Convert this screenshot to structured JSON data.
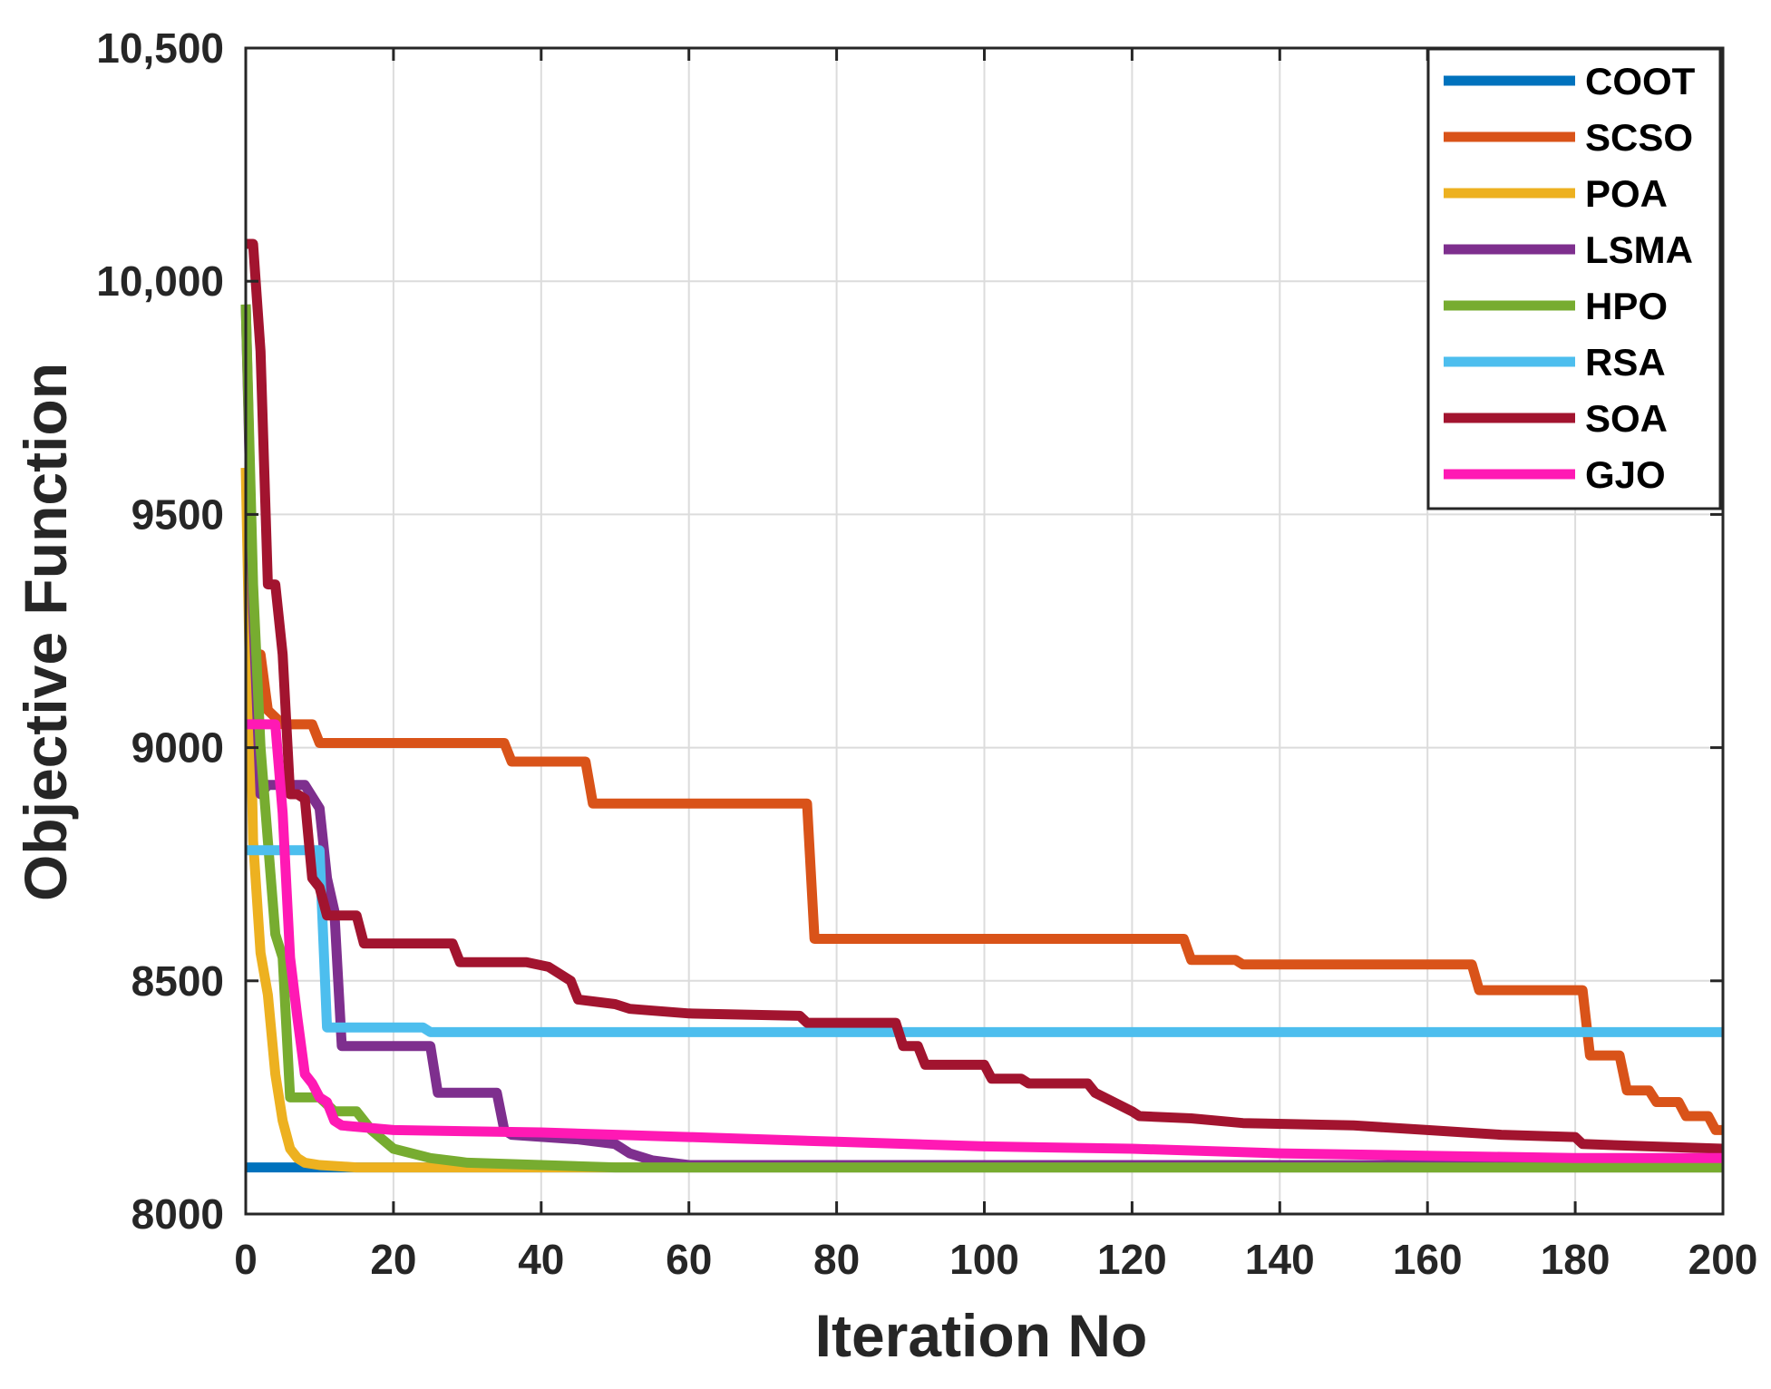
{
  "chart_data": {
    "type": "line",
    "title": "",
    "xlabel": "Iteration No",
    "ylabel": "Objective Function",
    "xlim": [
      0,
      200
    ],
    "ylim": [
      8000,
      10500
    ],
    "grid": true,
    "legend_position": "top-right",
    "x_ticks": [
      "0",
      "20",
      "40",
      "60",
      "80",
      "100",
      "120",
      "140",
      "160",
      "180",
      "200"
    ],
    "y_ticks": [
      "8000",
      "8500",
      "9000",
      "9500",
      "10,000",
      "10,500"
    ],
    "x_tick_values": [
      0,
      20,
      40,
      60,
      80,
      100,
      120,
      140,
      160,
      180,
      200
    ],
    "y_tick_values": [
      8000,
      8500,
      9000,
      9500,
      10000,
      10500
    ],
    "series": [
      {
        "name": "COOT",
        "color": "#0072BD",
        "x": [
          0,
          200
        ],
        "y": [
          8100,
          8100
        ]
      },
      {
        "name": "SCSO",
        "color": "#D95319",
        "x": [
          0,
          2,
          3,
          5,
          9,
          10,
          35,
          36,
          46,
          47,
          76,
          77,
          127,
          128,
          134,
          135,
          166,
          167,
          181,
          182,
          186,
          187,
          190,
          191,
          194,
          195,
          198,
          199,
          200
        ],
        "y": [
          9200,
          9200,
          9080,
          9050,
          9050,
          9010,
          9010,
          8970,
          8970,
          8880,
          8880,
          8590,
          8590,
          8545,
          8545,
          8535,
          8535,
          8480,
          8480,
          8340,
          8340,
          8265,
          8265,
          8240,
          8240,
          8210,
          8210,
          8180,
          8180
        ]
      },
      {
        "name": "POA",
        "color": "#EDB120",
        "x": [
          0,
          0.5,
          1,
          2,
          3,
          4,
          5,
          6,
          7,
          8,
          10,
          15,
          200
        ],
        "y": [
          9600,
          9200,
          8800,
          8560,
          8470,
          8300,
          8200,
          8140,
          8120,
          8110,
          8105,
          8100,
          8100
        ]
      },
      {
        "name": "LSMA",
        "color": "#7E2F8E",
        "x": [
          0,
          1,
          2,
          3,
          8,
          10,
          11,
          12,
          13,
          25,
          26,
          34,
          35,
          36,
          45,
          50,
          52,
          55,
          60,
          200
        ],
        "y": [
          9950,
          9300,
          8900,
          8920,
          8920,
          8870,
          8720,
          8650,
          8360,
          8360,
          8260,
          8260,
          8180,
          8170,
          8160,
          8150,
          8130,
          8115,
          8105,
          8105
        ]
      },
      {
        "name": "HPO",
        "color": "#77AC30",
        "x": [
          0,
          1,
          2,
          3,
          4,
          5,
          6,
          7,
          10,
          12,
          15,
          17,
          20,
          25,
          30,
          40,
          50,
          200
        ],
        "y": [
          9950,
          9350,
          9000,
          8800,
          8600,
          8550,
          8250,
          8250,
          8250,
          8220,
          8220,
          8180,
          8140,
          8120,
          8110,
          8105,
          8100,
          8100
        ]
      },
      {
        "name": "RSA",
        "color": "#4DBEEE",
        "x": [
          0,
          10,
          11,
          24,
          25,
          200
        ],
        "y": [
          8780,
          8780,
          8400,
          8400,
          8390,
          8390
        ]
      },
      {
        "name": "SOA",
        "color": "#A2142F",
        "x": [
          0,
          1,
          2,
          3,
          4,
          5,
          6,
          7,
          8,
          9,
          10,
          11,
          15,
          16,
          28,
          29,
          38,
          41,
          44,
          45,
          50,
          52,
          60,
          75,
          76,
          88,
          89,
          91,
          92,
          100,
          101,
          105,
          106,
          114,
          115,
          120,
          121,
          128,
          135,
          150,
          160,
          170,
          180,
          181,
          190,
          200
        ],
        "y": [
          10080,
          10080,
          9850,
          9350,
          9350,
          9200,
          8900,
          8900,
          8890,
          8720,
          8700,
          8640,
          8640,
          8580,
          8580,
          8540,
          8540,
          8530,
          8500,
          8460,
          8450,
          8440,
          8430,
          8425,
          8410,
          8410,
          8360,
          8360,
          8320,
          8320,
          8290,
          8290,
          8280,
          8280,
          8260,
          8220,
          8210,
          8205,
          8195,
          8190,
          8180,
          8170,
          8165,
          8150,
          8145,
          8140
        ]
      },
      {
        "name": "GJO",
        "color": "#FF19B4",
        "x": [
          0,
          1,
          4,
          5,
          6,
          7,
          8,
          9,
          10,
          11,
          12,
          13,
          20,
          40,
          60,
          80,
          100,
          120,
          140,
          160,
          180,
          200
        ],
        "y": [
          9050,
          9050,
          9050,
          8860,
          8550,
          8420,
          8300,
          8280,
          8250,
          8240,
          8200,
          8190,
          8180,
          8175,
          8165,
          8155,
          8145,
          8140,
          8130,
          8125,
          8120,
          8120
        ]
      }
    ]
  }
}
